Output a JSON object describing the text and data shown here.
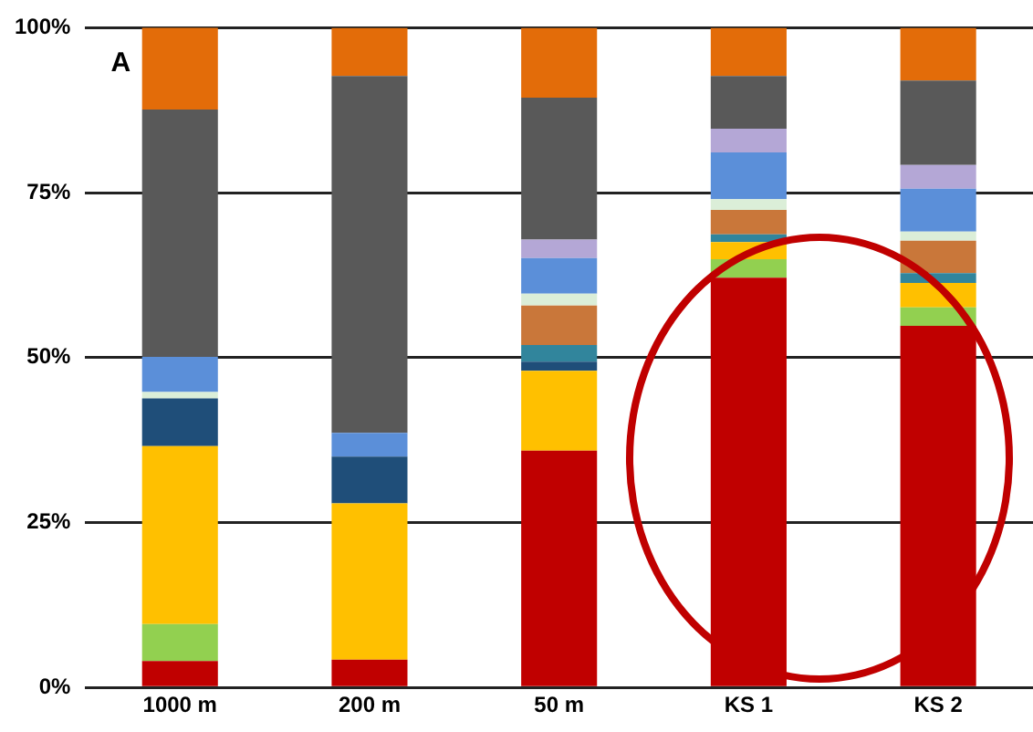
{
  "chart_data": {
    "type": "bar",
    "stacked": true,
    "categories": [
      "1000 m",
      "200 m",
      "50 m",
      "KS 1",
      "KS 2"
    ],
    "series": [
      {
        "color": "#c00000",
        "values": [
          4,
          4.2,
          35.9,
          62.1,
          54.8
        ]
      },
      {
        "color": "#92d050",
        "values": [
          5.6,
          null,
          null,
          2.8,
          2.8
        ]
      },
      {
        "color": "#ffc000",
        "values": [
          27,
          23.7,
          12.1,
          2.6,
          3.7
        ]
      },
      {
        "color": "#1f4e79",
        "values": [
          7.2,
          7.1,
          1.4,
          null,
          null
        ]
      },
      {
        "color": "#31859c",
        "values": [
          null,
          null,
          2.5,
          1.2,
          1.5
        ]
      },
      {
        "color": "#c9773a",
        "values": [
          null,
          null,
          6,
          3.7,
          4.9
        ]
      },
      {
        "color": "#dbeed8",
        "values": [
          1,
          null,
          1.8,
          1.6,
          1.4
        ]
      },
      {
        "color": "#5b8fd9",
        "values": [
          5.3,
          3.6,
          5.4,
          7.1,
          6.5
        ]
      },
      {
        "color": "#b4a7d6",
        "values": [
          null,
          null,
          2.8,
          3.6,
          3.6
        ]
      },
      {
        "color": "#595959",
        "values": [
          37.5,
          54.1,
          21.5,
          8,
          12.8
        ]
      },
      {
        "color": "#e36c09",
        "values": [
          12.5,
          7.3,
          10.6,
          7.3,
          8
        ]
      }
    ],
    "ylim": [
      0,
      100
    ],
    "yticks": [
      {
        "value": 0,
        "label": "0%"
      },
      {
        "value": 25,
        "label": "25%"
      },
      {
        "value": 50,
        "label": "50%"
      },
      {
        "value": 75,
        "label": "75%"
      },
      {
        "value": 100,
        "label": "100%"
      }
    ],
    "grid": "y",
    "legend": false,
    "annotations": [
      "A"
    ]
  }
}
